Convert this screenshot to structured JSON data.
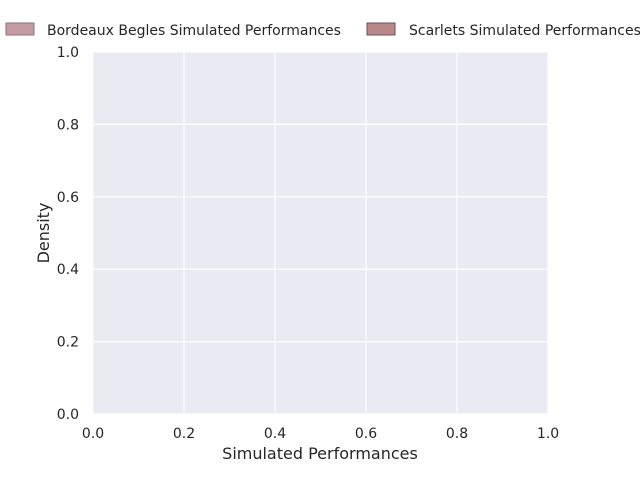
{
  "chart_data": {
    "type": "area",
    "title": "",
    "xlabel": "Simulated Performances",
    "ylabel": "Density",
    "xlim": [
      0.0,
      1.0
    ],
    "ylim": [
      0.0,
      1.0
    ],
    "x_ticks": [
      "0.0",
      "0.2",
      "0.4",
      "0.6",
      "0.8",
      "1.0"
    ],
    "y_ticks": [
      "0.0",
      "0.2",
      "0.4",
      "0.6",
      "0.8",
      "1.0"
    ],
    "grid": true,
    "legend_position": "top",
    "series": [
      {
        "name": "Bordeaux Begles Simulated Performances",
        "color": "#c49aa3",
        "values": []
      },
      {
        "name": "Scarlets Simulated Performances",
        "color": "#b8878a",
        "values": []
      }
    ],
    "colors": {
      "plot_background": "#eaeaf2",
      "grid": "#ffffff",
      "text": "#262626"
    }
  }
}
